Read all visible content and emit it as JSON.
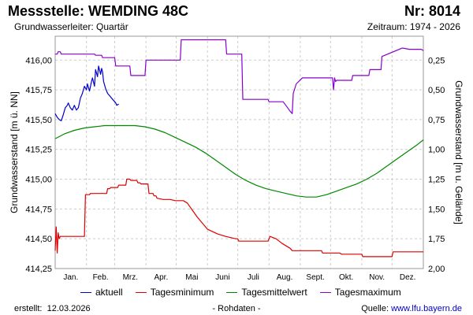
{
  "header": {
    "title": "Messstelle: WEMDING 48C",
    "number": "Nr: 8014",
    "aquifer": "Grundwasserleiter: Quartär",
    "period": "Zeitraum: 1974 - 2026"
  },
  "footer": {
    "created_label": "erstellt:",
    "created_date": "12.03.2026",
    "raw_note": "- Rohdaten -",
    "source_label": "Quelle:",
    "source_link": "www.lfu.bayern.de"
  },
  "colors": {
    "aktuell": "#0000cc",
    "minimum": "#dd0000",
    "mittel": "#008800",
    "maximum": "#8800cc",
    "grid": "#cccccc"
  },
  "chart_data": {
    "type": "line",
    "ylabel": "Grundwasserstand [m ü. NN]",
    "ylabel_right": "Grundwasserstand [m u. Gelände]",
    "ylim": [
      414.25,
      416.2
    ],
    "yticks": [
      "414,25",
      "414,50",
      "414,75",
      "415,00",
      "415,25",
      "415,50",
      "415,75",
      "416,00"
    ],
    "y2ticks": [
      "0,25",
      "0,50",
      "0,75",
      "1,00",
      "1,25",
      "1,50",
      "1,75",
      "2,00"
    ],
    "y2_ground_level": 416.25,
    "xlim_day": [
      1,
      366
    ],
    "month_labels": [
      "Jan.",
      "Feb.",
      "Mrz.",
      "Apr.",
      "Mai",
      "Juni",
      "Juli",
      "Aug.",
      "Sept.",
      "Okt.",
      "Nov.",
      "Dez."
    ],
    "legend": [
      "aktuell",
      "Tagesminimum",
      "Tagesmittelwert",
      "Tagesmaximum"
    ],
    "series": [
      {
        "name": "aktuell",
        "x_day": [
          1,
          3,
          5,
          7,
          9,
          11,
          13,
          14,
          16,
          18,
          20,
          22,
          24,
          26,
          28,
          30,
          32,
          33,
          35,
          37,
          38,
          40,
          41,
          43,
          44,
          46,
          47,
          48,
          49,
          51,
          53,
          55,
          57,
          59,
          61,
          62,
          64
        ],
        "values": [
          415.55,
          415.52,
          415.5,
          415.49,
          415.54,
          415.6,
          415.62,
          415.64,
          415.6,
          415.58,
          415.62,
          415.58,
          415.6,
          415.68,
          415.72,
          415.78,
          415.75,
          415.8,
          415.74,
          415.82,
          415.85,
          415.78,
          415.92,
          415.86,
          415.95,
          415.88,
          415.93,
          415.9,
          415.82,
          415.76,
          415.72,
          415.7,
          415.68,
          415.66,
          415.64,
          415.62,
          415.63
        ]
      },
      {
        "name": "Tagesminimum",
        "x_day": [
          1,
          2,
          3,
          4,
          5,
          6,
          17,
          18,
          30,
          31,
          35,
          36,
          52,
          53,
          55,
          56,
          63,
          64,
          71,
          72,
          75,
          76,
          82,
          83,
          85,
          86,
          93,
          94,
          98,
          99,
          101,
          102,
          108,
          115,
          120,
          125,
          128,
          132,
          137,
          142,
          148,
          152,
          157,
          162,
          170,
          180,
          182,
          183,
          185,
          186,
          205,
          207,
          212,
          214,
          220,
          226,
          234,
          236,
          265,
          266,
          270,
          271,
          283,
          285,
          305,
          306,
          335,
          336,
          366
        ],
        "values": [
          414.4,
          414.6,
          414.38,
          414.55,
          414.5,
          414.52,
          414.52,
          414.52,
          414.52,
          414.87,
          414.87,
          414.88,
          414.88,
          414.92,
          414.92,
          414.93,
          414.93,
          414.95,
          414.95,
          415.0,
          415.0,
          414.99,
          414.99,
          414.97,
          414.97,
          414.96,
          414.96,
          414.88,
          414.88,
          414.86,
          414.86,
          414.84,
          414.83,
          414.83,
          414.82,
          414.82,
          414.82,
          414.8,
          414.74,
          414.68,
          414.62,
          414.58,
          414.56,
          414.54,
          414.52,
          414.5,
          414.5,
          414.48,
          414.48,
          414.48,
          414.48,
          414.48,
          414.48,
          414.52,
          414.5,
          414.46,
          414.42,
          414.4,
          414.4,
          414.38,
          414.38,
          414.38,
          414.38,
          414.37,
          414.37,
          414.35,
          414.35,
          414.39,
          414.39
        ]
      },
      {
        "name": "Tagesmittelwert",
        "x_day": [
          1,
          10,
          20,
          30,
          40,
          50,
          60,
          70,
          80,
          90,
          100,
          110,
          120,
          130,
          140,
          150,
          160,
          170,
          180,
          190,
          200,
          210,
          220,
          230,
          240,
          250,
          260,
          270,
          280,
          290,
          300,
          310,
          320,
          330,
          340,
          350,
          360,
          366
        ],
        "values": [
          415.34,
          415.38,
          415.41,
          415.43,
          415.44,
          415.45,
          415.45,
          415.45,
          415.45,
          415.44,
          415.42,
          415.39,
          415.35,
          415.31,
          415.27,
          415.22,
          415.16,
          415.1,
          415.04,
          414.99,
          414.95,
          414.92,
          414.9,
          414.88,
          414.86,
          414.85,
          414.85,
          414.87,
          414.9,
          414.93,
          414.96,
          415.0,
          415.05,
          415.11,
          415.17,
          415.23,
          415.29,
          415.33
        ]
      },
      {
        "name": "Tagesmaximum",
        "x_day": [
          1,
          2,
          3,
          4,
          6,
          7,
          10,
          40,
          41,
          47,
          48,
          60,
          61,
          75,
          76,
          90,
          91,
          103,
          104,
          125,
          126,
          127,
          170,
          171,
          186,
          187,
          188,
          212,
          213,
          226,
          227,
          234,
          236,
          237,
          240,
          246,
          247,
          276,
          277,
          278,
          279,
          280,
          295,
          296,
          300,
          312,
          313,
          324,
          325,
          345,
          346,
          352,
          364,
          366
        ],
        "values": [
          416.05,
          416.05,
          416.05,
          416.07,
          416.07,
          416.05,
          416.05,
          416.05,
          416.04,
          416.04,
          416.02,
          416.02,
          415.95,
          415.95,
          415.87,
          415.87,
          416.0,
          416.0,
          416.0,
          416.0,
          416.17,
          416.17,
          416.17,
          416.05,
          416.05,
          415.67,
          415.67,
          415.67,
          415.65,
          415.65,
          415.65,
          415.57,
          415.55,
          415.72,
          415.8,
          415.85,
          415.85,
          415.85,
          415.75,
          415.85,
          415.82,
          415.83,
          415.83,
          415.87,
          415.87,
          415.87,
          415.92,
          415.92,
          416.03,
          416.1,
          416.1,
          416.09,
          416.09,
          416.08
        ]
      }
    ]
  }
}
